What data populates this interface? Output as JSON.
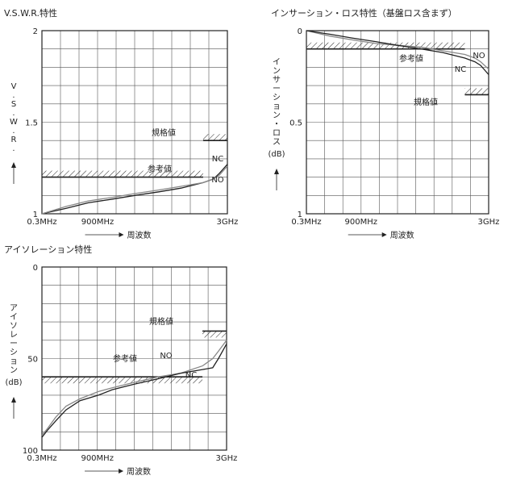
{
  "charts": [
    {
      "id": "vswr",
      "title": "V.S.W.R.特性",
      "ylabel": "V.S.W.R.",
      "ylim": [
        1,
        2
      ],
      "y_ticks": [
        "2",
        "1.5",
        "1"
      ],
      "x_ticks": [
        "0.3MHz",
        "900MHz",
        "3GHz"
      ],
      "xlabel": "周波数",
      "spec_label": "規格値",
      "ref_label": "参考値",
      "series_labels": [
        "NC",
        "NO"
      ],
      "chart_data": {
        "type": "line",
        "x_scale": "log",
        "x_range_mhz": [
          0.3,
          3000
        ],
        "y_range": [
          1,
          2
        ],
        "grid": true,
        "spec_limits": [
          {
            "x_from_mhz": 0.3,
            "x_to_mhz": 900,
            "y": 1.2
          },
          {
            "x_from_mhz": 900,
            "x_to_mhz": 3000,
            "y": 1.4
          }
        ],
        "series": [
          {
            "name": "NC",
            "x_mhz": [
              0.3,
              1,
              3,
              10,
              30,
              100,
              300,
              900,
              1500,
              2000,
              3000
            ],
            "y": [
              1.0,
              1.03,
              1.06,
              1.08,
              1.1,
              1.12,
              1.14,
              1.17,
              1.19,
              1.22,
              1.27
            ]
          },
          {
            "name": "NO",
            "x_mhz": [
              0.3,
              1,
              3,
              10,
              30,
              100,
              300,
              900,
              1500,
              2000,
              3000
            ],
            "y": [
              1.0,
              1.04,
              1.07,
              1.09,
              1.11,
              1.13,
              1.15,
              1.17,
              1.19,
              1.21,
              1.26
            ]
          }
        ]
      }
    },
    {
      "id": "insertion",
      "title": "インサーション・ロス特性（基盤ロス含まず）",
      "ylabel": "インサーション・ロス",
      "yunit": "(dB)",
      "ylim": [
        0,
        1
      ],
      "y_ticks": [
        "0",
        "0.5",
        "1"
      ],
      "x_ticks": [
        "0.3MHz",
        "900MHz",
        "3GHz"
      ],
      "xlabel": "周波数",
      "spec_label": "規格値",
      "ref_label": "参考値",
      "series_labels": [
        "NO",
        "NC"
      ],
      "chart_data": {
        "type": "line",
        "x_scale": "log",
        "x_range_mhz": [
          0.3,
          3000
        ],
        "y_range": [
          0,
          1
        ],
        "y_inverted": true,
        "grid": true,
        "spec_limits": [
          {
            "x_from_mhz": 0.3,
            "x_to_mhz": 900,
            "y": 0.1
          },
          {
            "x_from_mhz": 900,
            "x_to_mhz": 3000,
            "y": 0.35
          }
        ],
        "series": [
          {
            "name": "NO",
            "x_mhz": [
              0.3,
              1,
              3,
              10,
              30,
              100,
              300,
              900,
              1500,
              2000,
              3000
            ],
            "y": [
              0.0,
              0.03,
              0.05,
              0.07,
              0.08,
              0.09,
              0.11,
              0.13,
              0.15,
              0.17,
              0.21
            ]
          },
          {
            "name": "NC",
            "x_mhz": [
              0.3,
              1,
              3,
              10,
              30,
              100,
              300,
              900,
              1500,
              2000,
              3000
            ],
            "y": [
              0.0,
              0.02,
              0.04,
              0.06,
              0.08,
              0.1,
              0.12,
              0.15,
              0.17,
              0.19,
              0.24
            ]
          }
        ]
      }
    },
    {
      "id": "isolation",
      "title": "アイソレーション特性",
      "ylabel": "アイソレーション",
      "yunit": "(dB)",
      "ylim": [
        0,
        100
      ],
      "y_ticks": [
        "0",
        "50",
        "100"
      ],
      "x_ticks": [
        "0.3MHz",
        "900MHz",
        "3GHz"
      ],
      "xlabel": "周波数",
      "spec_label": "規格値",
      "ref_label": "参考値",
      "series_labels": [
        "NO",
        "NC"
      ],
      "chart_data": {
        "type": "line",
        "x_scale": "log",
        "x_range_mhz": [
          0.3,
          3000
        ],
        "y_range": [
          0,
          100
        ],
        "y_inverted": true,
        "grid": true,
        "spec_limits": [
          {
            "x_from_mhz": 0.3,
            "x_to_mhz": 900,
            "y": 60
          },
          {
            "x_from_mhz": 900,
            "x_to_mhz": 3000,
            "y": 35
          }
        ],
        "series": [
          {
            "name": "NO",
            "x_mhz": [
              0.3,
              0.4,
              0.6,
              1,
              2,
              5,
              10,
              30,
              100,
              300,
              900,
              1500,
              2000,
              3000
            ],
            "y": [
              92,
              88,
              82,
              76,
              72,
              68,
              66,
              63,
              60,
              58,
              54,
              50,
              46,
              40
            ]
          },
          {
            "name": "NC",
            "x_mhz": [
              0.3,
              0.4,
              0.6,
              1,
              2,
              5,
              10,
              30,
              100,
              300,
              900,
              1500,
              2000,
              3000
            ],
            "y": [
              93,
              89,
              84,
              78,
              73,
              70,
              67,
              64,
              61,
              58,
              56,
              55,
              50,
              42
            ]
          }
        ]
      }
    }
  ]
}
